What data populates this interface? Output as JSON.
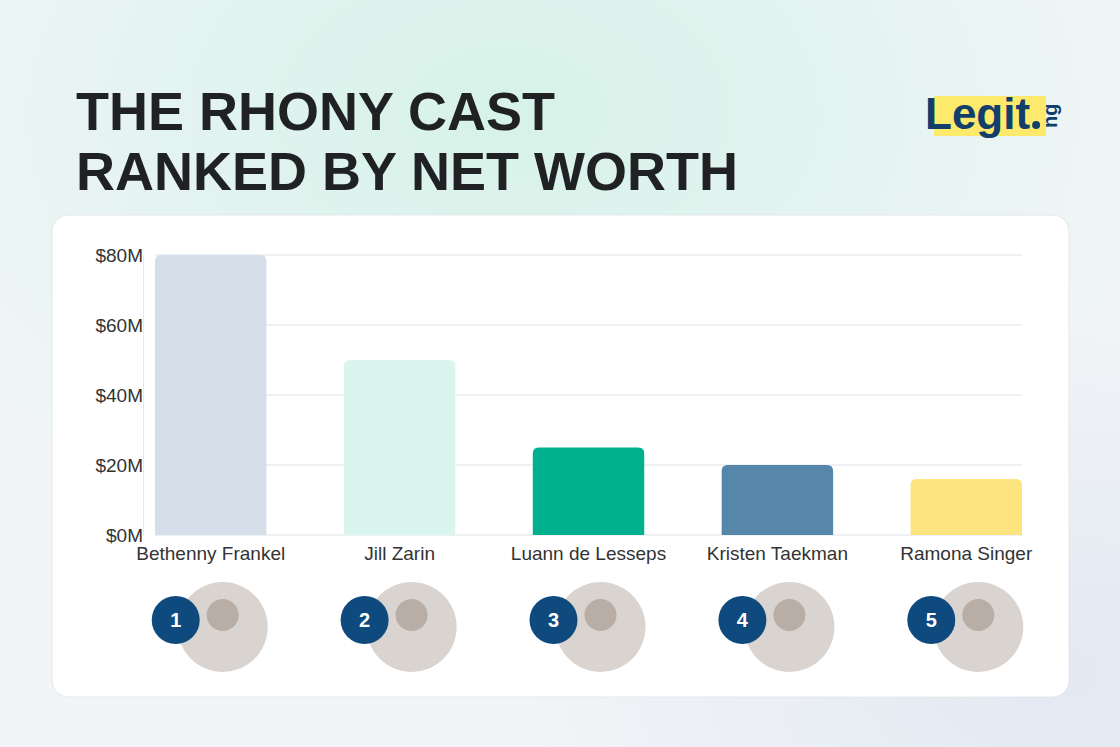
{
  "chart_data": {
    "type": "bar",
    "title": "THE RHONY CAST RANKED BY NET WORTH",
    "logo": {
      "main": "Legit",
      "suffix": "ng"
    },
    "categories": [
      "Bethenny Frankel",
      "Jill Zarin",
      "Luann de Lesseps",
      "Kristen Taekman",
      "Ramona Singer"
    ],
    "values": [
      80,
      50,
      25,
      20,
      16
    ],
    "ranks": [
      1,
      2,
      3,
      4,
      5
    ],
    "colors": [
      "#d5dfe9",
      "#d9f5ee",
      "#00b08e",
      "#5687ab",
      "#fde47e"
    ],
    "ylim": [
      0,
      80
    ],
    "yticks": [
      {
        "value": 0,
        "label": "$0M"
      },
      {
        "value": 20,
        "label": "$20M"
      },
      {
        "value": 40,
        "label": "$40M"
      },
      {
        "value": 60,
        "label": "$60M"
      },
      {
        "value": 80,
        "label": "$80M"
      }
    ],
    "grid": true
  }
}
